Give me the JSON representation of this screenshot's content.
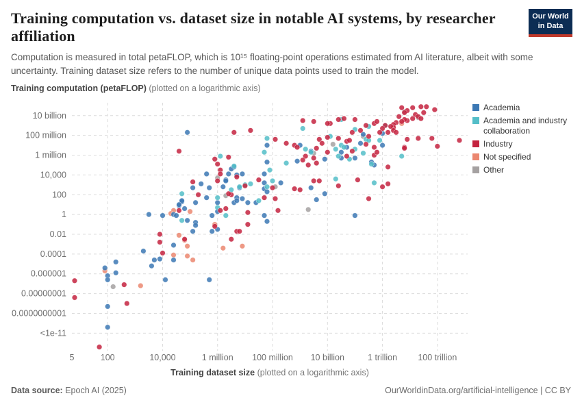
{
  "header": {
    "title": "Training computation vs. dataset size in notable AI systems, by researcher affiliation",
    "subtitle": "Computation is measured in total petaFLOP, which is 10¹⁵ floating-point operations estimated from AI literature, albeit with some uncertainty. Training dataset size refers to the number of unique data points used to train the model.",
    "logo_line1": "Our World",
    "logo_line2": "in Data"
  },
  "y_axis": {
    "title_bold": "Training computation (petaFLOP)",
    "title_note": " (plotted on a logarithmic axis)",
    "ticks": [
      {
        "label": "10 billion",
        "log": 10
      },
      {
        "label": "100 million",
        "log": 8
      },
      {
        "label": "1 million",
        "log": 6
      },
      {
        "label": "10,000",
        "log": 4
      },
      {
        "label": "100",
        "log": 2
      },
      {
        "label": "1",
        "log": 0
      },
      {
        "label": "0.01",
        "log": -2
      },
      {
        "label": "0.0001",
        "log": -4
      },
      {
        "label": "0.000001",
        "log": -6
      },
      {
        "label": "0.00000001",
        "log": -8
      },
      {
        "label": "0.0000000001",
        "log": -10
      },
      {
        "label": "<1e-11",
        "log": -12
      }
    ]
  },
  "x_axis": {
    "title_bold": "Training dataset size",
    "title_note": " (plotted on a logarithmic axis)",
    "ticks": [
      {
        "label": "5",
        "log": 0.7,
        "grid": false
      },
      {
        "label": "100",
        "log": 2,
        "grid": true
      },
      {
        "label": "10,000",
        "log": 4,
        "grid": true
      },
      {
        "label": "1 million",
        "log": 6,
        "grid": true
      },
      {
        "label": "100 million",
        "log": 8,
        "grid": true
      },
      {
        "label": "10 billion",
        "log": 10,
        "grid": true
      },
      {
        "label": "1 trillion",
        "log": 12,
        "grid": true
      },
      {
        "label": "100 trillion",
        "log": 14,
        "grid": true
      }
    ]
  },
  "legend": {
    "items": [
      {
        "label": "Academia",
        "color": "#3C78B4"
      },
      {
        "label": "Academia and industry collaboration",
        "color": "#54BEC8"
      },
      {
        "label": "Industry",
        "color": "#C4233F"
      },
      {
        "label": "Not specified",
        "color": "#EB8770"
      },
      {
        "label": "Other",
        "color": "#A5A1A1"
      }
    ]
  },
  "footer": {
    "source_label": "Data source:",
    "source_value": " Epoch AI (2025)",
    "right_text": "OurWorldinData.org/artificial-intelligence | CC BY"
  },
  "chart_data": {
    "type": "scatter",
    "x_scale": "log10",
    "y_scale": "log10",
    "x_range_log": [
      0.7,
      15.1
    ],
    "y_range_log": [
      -13.5,
      11.3
    ],
    "grid": true,
    "legend_position": "right",
    "note": "points are [log10(training dataset size), log10(training petaFLOP)] estimated from pixels",
    "series": [
      {
        "name": "Other",
        "color": "#A5A1A1",
        "points": [
          [
            6.0,
            3.7
          ],
          [
            6.3,
            1.9
          ],
          [
            2.2,
            -7.3
          ],
          [
            8.1,
            2.8
          ],
          [
            9.3,
            0.5
          ],
          [
            9.5,
            6.2
          ],
          [
            10.2,
            7.1
          ],
          [
            11.3,
            7.9
          ],
          [
            12.8,
            10.4
          ],
          [
            13.3,
            9.8
          ]
        ]
      },
      {
        "name": "Not specified",
        "color": "#EB8770",
        "points": [
          [
            4.4,
            0.4
          ],
          [
            5.0,
            0.3
          ],
          [
            4.3,
            0.1
          ],
          [
            5.9,
            -1.0
          ],
          [
            4.6,
            -2.1
          ],
          [
            4.8,
            -2.6
          ],
          [
            4.9,
            -3.2
          ],
          [
            6.2,
            -3.4
          ],
          [
            6.9,
            -3.2
          ],
          [
            4.4,
            -4.1
          ],
          [
            4.9,
            -4.2
          ],
          [
            5.1,
            -4.6
          ],
          [
            1.9,
            -5.7
          ],
          [
            3.2,
            -7.2
          ],
          [
            12.7,
            9.2
          ]
        ]
      },
      {
        "name": "Academia",
        "color": "#3C78B4",
        "points": [
          [
            4.9,
            8.3
          ],
          [
            7.8,
            5.3
          ],
          [
            6.6,
            4.8
          ],
          [
            6.5,
            4.6
          ],
          [
            6.9,
            4.1
          ],
          [
            6.4,
            4.1
          ],
          [
            6.7,
            4.0
          ],
          [
            5.6,
            4.1
          ],
          [
            6.3,
            3.5
          ],
          [
            6.3,
            3.4
          ],
          [
            7.7,
            3.2
          ],
          [
            5.7,
            2.7
          ],
          [
            5.1,
            2.7
          ],
          [
            6.2,
            2.8
          ],
          [
            6.8,
            2.7
          ],
          [
            7.7,
            4.1
          ],
          [
            7.7,
            2.6
          ],
          [
            5.4,
            3.1
          ],
          [
            5.6,
            1.7
          ],
          [
            6.7,
            1.7
          ],
          [
            6.6,
            1.2
          ],
          [
            5.2,
            1.2
          ],
          [
            4.7,
            1.3
          ],
          [
            4.6,
            0.9
          ],
          [
            4.7,
            1.4
          ],
          [
            4.6,
            1.0
          ],
          [
            4.8,
            0.6
          ],
          [
            3.5,
            0.0
          ],
          [
            4.0,
            -0.1
          ],
          [
            4.4,
            0.0
          ],
          [
            4.5,
            -0.1
          ],
          [
            5.8,
            -0.1
          ],
          [
            6.0,
            0.3
          ],
          [
            6.0,
            1.2
          ],
          [
            6.7,
            1.4
          ],
          [
            6.9,
            1.6
          ],
          [
            7.1,
            1.2
          ],
          [
            7.4,
            1.2
          ],
          [
            7.7,
            -0.1
          ],
          [
            4.9,
            -0.6
          ],
          [
            5.2,
            -0.8
          ],
          [
            5.2,
            -1.1
          ],
          [
            5.1,
            -1.7
          ],
          [
            5.8,
            -1.7
          ],
          [
            6.0,
            -1.5
          ],
          [
            7.8,
            -0.7
          ],
          [
            4.4,
            -3.1
          ],
          [
            3.3,
            -3.7
          ],
          [
            4.4,
            -4.6
          ],
          [
            3.7,
            -4.6
          ],
          [
            3.9,
            -4.5
          ],
          [
            3.6,
            -5.2
          ],
          [
            2.3,
            -4.8
          ],
          [
            1.9,
            -5.4
          ],
          [
            2.3,
            -5.9
          ],
          [
            2.0,
            -6.2
          ],
          [
            2.0,
            -6.6
          ],
          [
            4.1,
            -6.6
          ],
          [
            5.7,
            -6.6
          ],
          [
            2.0,
            -9.3
          ],
          [
            2.0,
            -11.4
          ],
          [
            8.3,
            3.2
          ],
          [
            7.8,
            2.3
          ],
          [
            9.4,
            2.7
          ],
          [
            9.9,
            2.1
          ],
          [
            9.6,
            1.5
          ],
          [
            11.0,
            -0.1
          ],
          [
            11.6,
            5.3
          ],
          [
            11.7,
            5.0
          ],
          [
            9.0,
            7.0
          ],
          [
            9.4,
            6.4
          ],
          [
            10.7,
            6.8
          ],
          [
            11.3,
            8.1
          ],
          [
            11.2,
            7.2
          ],
          [
            10.5,
            6.3
          ],
          [
            8.9,
            5.4
          ],
          [
            9.9,
            5.6
          ],
          [
            10.5,
            5.7
          ],
          [
            11.0,
            5.7
          ],
          [
            12.0,
            8.2
          ],
          [
            12.0,
            7.0
          ],
          [
            7.8,
            7.0
          ]
        ]
      },
      {
        "name": "Academia and industry collaboration",
        "color": "#54BEC8",
        "points": [
          [
            7.7,
            6.3
          ],
          [
            6.1,
            5.9
          ],
          [
            6.6,
            4.9
          ],
          [
            7.9,
            4.5
          ],
          [
            7.2,
            3.1
          ],
          [
            7.0,
            3.0
          ],
          [
            6.8,
            2.8
          ],
          [
            4.7,
            2.1
          ],
          [
            6.5,
            2.5
          ],
          [
            7.5,
            1.4
          ],
          [
            6.0,
            1.7
          ],
          [
            6.0,
            0.7
          ],
          [
            4.7,
            -0.6
          ],
          [
            6.3,
            -0.1
          ],
          [
            8.0,
            3.4
          ],
          [
            7.8,
            2.8
          ],
          [
            10.3,
            3.6
          ],
          [
            11.7,
            3.2
          ],
          [
            12.7,
            5.9
          ],
          [
            11.6,
            5.1
          ],
          [
            10.5,
            9.6
          ],
          [
            11.5,
            8.9
          ],
          [
            9.1,
            8.7
          ],
          [
            9.2,
            6.6
          ],
          [
            10.1,
            7.9
          ],
          [
            10.5,
            7.0
          ],
          [
            10.6,
            6.8
          ],
          [
            11.0,
            8.6
          ],
          [
            11.4,
            7.6
          ],
          [
            11.5,
            7.5
          ],
          [
            11.0,
            6.6
          ],
          [
            10.3,
            6.6
          ],
          [
            9.4,
            6.3
          ],
          [
            8.5,
            5.2
          ],
          [
            10.4,
            5.9
          ],
          [
            10.8,
            5.6
          ],
          [
            11.3,
            6.2
          ],
          [
            12.1,
            9.0
          ],
          [
            11.9,
            7.5
          ],
          [
            7.8,
            7.7
          ]
        ]
      },
      {
        "name": "Industry",
        "color": "#C4233F",
        "points": [
          [
            6.6,
            8.3
          ],
          [
            7.2,
            8.5
          ],
          [
            4.6,
            6.4
          ],
          [
            5.9,
            5.6
          ],
          [
            6.4,
            5.8
          ],
          [
            6.0,
            5.1
          ],
          [
            6.1,
            4.5
          ],
          [
            6.1,
            4.1
          ],
          [
            6.7,
            3.8
          ],
          [
            6.0,
            3.4
          ],
          [
            7.5,
            3.5
          ],
          [
            5.1,
            3.3
          ],
          [
            7.0,
            2.9
          ],
          [
            6.5,
            2.0
          ],
          [
            6.4,
            2.1
          ],
          [
            5.3,
            2.0
          ],
          [
            7.7,
            1.7
          ],
          [
            6.3,
            0.6
          ],
          [
            6.1,
            0.4
          ],
          [
            4.6,
            0.4
          ],
          [
            7.1,
            0.2
          ],
          [
            7.1,
            -1.0
          ],
          [
            6.7,
            -1.7
          ],
          [
            5.9,
            -1.2
          ],
          [
            3.9,
            -2.0
          ],
          [
            6.8,
            -1.7
          ],
          [
            4.8,
            -2.5
          ],
          [
            3.9,
            -2.8
          ],
          [
            6.5,
            -2.5
          ],
          [
            4.0,
            -3.9
          ],
          [
            0.8,
            -6.7
          ],
          [
            2.6,
            -7.1
          ],
          [
            0.8,
            -8.4
          ],
          [
            2.7,
            -9.0
          ],
          [
            1.7,
            -13.4
          ],
          [
            8.0,
            2.7
          ],
          [
            8.8,
            2.6
          ],
          [
            9.0,
            2.5
          ],
          [
            9.5,
            3.4
          ],
          [
            9.7,
            3.4
          ],
          [
            10.4,
            2.9
          ],
          [
            8.1,
            1.6
          ],
          [
            8.2,
            0.4
          ],
          [
            11.1,
            3.5
          ],
          [
            12.0,
            2.8
          ],
          [
            12.2,
            3.1
          ],
          [
            11.5,
            1.6
          ],
          [
            12.2,
            4.8
          ],
          [
            9.1,
            9.5
          ],
          [
            9.5,
            9.4
          ],
          [
            10.1,
            9.2
          ],
          [
            10.4,
            9.6
          ],
          [
            10.6,
            9.7
          ],
          [
            11.0,
            9.6
          ],
          [
            11.4,
            9.0
          ],
          [
            11.7,
            9.2
          ],
          [
            11.8,
            9.4
          ],
          [
            10.0,
            9.2
          ],
          [
            8.5,
            7.2
          ],
          [
            8.8,
            7.0
          ],
          [
            8.9,
            6.8
          ],
          [
            9.6,
            6.7
          ],
          [
            9.7,
            7.6
          ],
          [
            9.8,
            7.2
          ],
          [
            10.0,
            7.8
          ],
          [
            10.4,
            7.7
          ],
          [
            10.7,
            7.4
          ],
          [
            10.8,
            7.5
          ],
          [
            10.9,
            8.3
          ],
          [
            11.2,
            8.5
          ],
          [
            11.5,
            7.9
          ],
          [
            11.4,
            7.1
          ],
          [
            11.7,
            6.8
          ],
          [
            10.9,
            6.4
          ],
          [
            10.0,
            6.3
          ],
          [
            9.5,
            5.7
          ],
          [
            9.2,
            5.9
          ],
          [
            9.6,
            5.2
          ],
          [
            10.7,
            5.9
          ],
          [
            11.7,
            6.0
          ],
          [
            11.8,
            6.3
          ],
          [
            9.3,
            5.0
          ],
          [
            9.1,
            5.5
          ],
          [
            12.7,
            10.8
          ],
          [
            13.1,
            10.8
          ],
          [
            13.4,
            10.9
          ],
          [
            12.9,
            10.5
          ],
          [
            12.8,
            10.3
          ],
          [
            13.2,
            10.1
          ],
          [
            13.5,
            10.3
          ],
          [
            13.3,
            9.9
          ],
          [
            13.4,
            9.7
          ],
          [
            13.1,
            9.7
          ],
          [
            12.9,
            9.5
          ],
          [
            12.8,
            9.6
          ],
          [
            12.7,
            9.4
          ],
          [
            12.5,
            9.3
          ],
          [
            12.4,
            9.1
          ],
          [
            12.6,
            9.9
          ],
          [
            12.4,
            8.8
          ],
          [
            12.3,
            8.9
          ],
          [
            12.1,
            9.0
          ],
          [
            12.0,
            8.7
          ],
          [
            12.2,
            8.3
          ],
          [
            12.4,
            8.5
          ],
          [
            12.5,
            8.3
          ],
          [
            12.9,
            7.6
          ],
          [
            13.3,
            7.7
          ],
          [
            13.8,
            7.7
          ],
          [
            14.8,
            7.5
          ],
          [
            14.0,
            6.9
          ],
          [
            12.8,
            6.8
          ],
          [
            11.9,
            8.3
          ],
          [
            12.8,
            6.7
          ],
          [
            8.1,
            7.6
          ],
          [
            13.9,
            10.6
          ],
          [
            13.6,
            10.9
          ]
        ]
      }
    ]
  }
}
